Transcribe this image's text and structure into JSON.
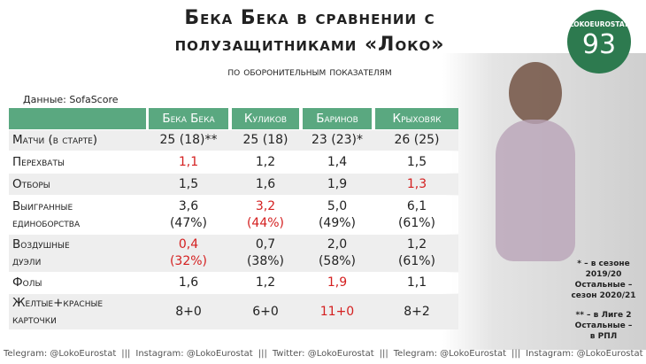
{
  "header": {
    "title_lines": [
      "Бека Бека в сравнении с",
      "полузащитниками «Локо»"
    ],
    "subtitle": "по оборонительным показателям",
    "source": "Данные: SofaScore"
  },
  "logo": {
    "name": "LOKOEUROSTAT",
    "number": "93"
  },
  "table": {
    "columns": [
      "Бека Бека",
      "Куликов",
      "Баринов",
      "Крыховяк"
    ],
    "rows": [
      {
        "label": [
          "Матчи (в старте)"
        ],
        "cells": [
          {
            "lines": [
              "25 (18)**"
            ],
            "highlight": false
          },
          {
            "lines": [
              "25 (18)"
            ],
            "highlight": false
          },
          {
            "lines": [
              "23 (23)*"
            ],
            "highlight": false
          },
          {
            "lines": [
              "26 (25)"
            ],
            "highlight": false
          }
        ]
      },
      {
        "label": [
          "Перехваты"
        ],
        "cells": [
          {
            "lines": [
              "1,1"
            ],
            "highlight": true
          },
          {
            "lines": [
              "1,2"
            ],
            "highlight": false
          },
          {
            "lines": [
              "1,4"
            ],
            "highlight": false
          },
          {
            "lines": [
              "1,5"
            ],
            "highlight": false
          }
        ]
      },
      {
        "label": [
          "Отборы"
        ],
        "cells": [
          {
            "lines": [
              "1,5"
            ],
            "highlight": false
          },
          {
            "lines": [
              "1,6"
            ],
            "highlight": false
          },
          {
            "lines": [
              "1,9"
            ],
            "highlight": false
          },
          {
            "lines": [
              "1,3"
            ],
            "highlight": true
          }
        ]
      },
      {
        "label": [
          "Выигранные",
          "единоборства"
        ],
        "cells": [
          {
            "lines": [
              "3,6",
              "(47%)"
            ],
            "highlight": false
          },
          {
            "lines": [
              "3,2",
              "(44%)"
            ],
            "highlight": true
          },
          {
            "lines": [
              "5,0",
              "(49%)"
            ],
            "highlight": false
          },
          {
            "lines": [
              "6,1",
              "(61%)"
            ],
            "highlight": false
          }
        ]
      },
      {
        "label": [
          "Воздушные",
          "дуэли"
        ],
        "cells": [
          {
            "lines": [
              "0,4",
              "(32%)"
            ],
            "highlight": true
          },
          {
            "lines": [
              "0,7",
              "(38%)"
            ],
            "highlight": false
          },
          {
            "lines": [
              "2,0",
              "(58%)"
            ],
            "highlight": false
          },
          {
            "lines": [
              "1,2",
              "(61%)"
            ],
            "highlight": false
          }
        ]
      },
      {
        "label": [
          "Фолы"
        ],
        "cells": [
          {
            "lines": [
              "1,6"
            ],
            "highlight": false
          },
          {
            "lines": [
              "1,2"
            ],
            "highlight": false
          },
          {
            "lines": [
              "1,9"
            ],
            "highlight": true
          },
          {
            "lines": [
              "1,1"
            ],
            "highlight": false
          }
        ]
      },
      {
        "label": [
          "Желтые+красные",
          "карточки"
        ],
        "cells": [
          {
            "lines": [
              "8+0"
            ],
            "highlight": false
          },
          {
            "lines": [
              "6+0"
            ],
            "highlight": false
          },
          {
            "lines": [
              "11+0"
            ],
            "highlight": true
          },
          {
            "lines": [
              "8+2"
            ],
            "highlight": false
          }
        ]
      }
    ]
  },
  "footnotes": [
    [
      "* – в сезоне",
      "2019/20",
      "Остальные –",
      "сезон 2020/21"
    ],
    [
      "** – в Лиге 2",
      "Остальные –",
      "в РПЛ"
    ]
  ],
  "footer": [
    "Telegram: @LokoEurostat",
    "|||",
    "Instagram: @LokoEurostat",
    "|||",
    "Twitter: @LokoEurostat",
    "|||",
    "Telegram: @LokoEurostat",
    "|||",
    "Instagram: @LokoEurostat"
  ]
}
